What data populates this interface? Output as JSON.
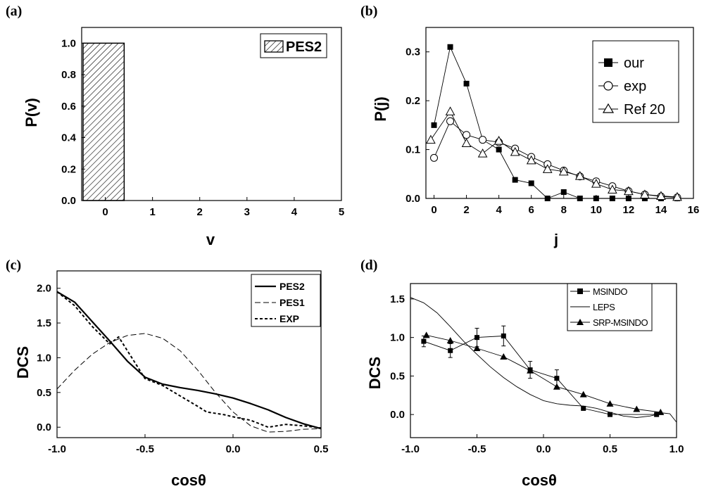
{
  "chart_data": [
    {
      "panel": "(a)",
      "type": "bar",
      "xlabel": "v",
      "ylabel": "P(v)",
      "xlim": [
        -0.5,
        5
      ],
      "ylim": [
        0,
        1.1
      ],
      "xticks": [
        "0",
        "1",
        "2",
        "3",
        "4",
        "5"
      ],
      "yticks": [
        "0.0",
        "0.2",
        "0.4",
        "0.6",
        "0.8",
        "1.0"
      ],
      "legend": [
        "PES2"
      ],
      "legend_position": "top-right",
      "categories": [
        0
      ],
      "values": [
        1.0
      ]
    },
    {
      "panel": "(b)",
      "type": "scatter",
      "xlabel": "j",
      "ylabel": "P(j)",
      "xlim": [
        -0.5,
        16
      ],
      "ylim": [
        0,
        0.35
      ],
      "xticks": [
        "0",
        "2",
        "4",
        "6",
        "8",
        "10",
        "12",
        "14",
        "16"
      ],
      "yticks": [
        "0.0",
        "0.1",
        "0.2",
        "0.3"
      ],
      "legend_position": "top-right",
      "series": [
        {
          "name": "our",
          "marker": "filled-square",
          "x": [
            0,
            1,
            2,
            3,
            4,
            5,
            6,
            7,
            8,
            9,
            10,
            11,
            12,
            13,
            14,
            15
          ],
          "y": [
            0.15,
            0.31,
            0.235,
            0.12,
            0.1,
            0.038,
            0.031,
            0.0,
            0.013,
            0.0,
            0.0,
            0.0,
            0.0,
            0.0,
            0.0,
            0.0
          ]
        },
        {
          "name": "exp",
          "marker": "open-circle",
          "x": [
            0,
            1,
            2,
            3,
            4,
            5,
            6,
            7,
            8,
            9,
            10,
            11,
            12,
            13,
            14,
            15
          ],
          "y": [
            0.083,
            0.158,
            0.13,
            0.12,
            0.115,
            0.102,
            0.085,
            0.07,
            0.057,
            0.045,
            0.035,
            0.025,
            0.015,
            0.008,
            0.004,
            0.002
          ]
        },
        {
          "name": "Ref 20",
          "marker": "open-triangle",
          "x": [
            -0.2,
            1,
            2,
            3,
            4,
            5,
            6,
            7,
            8,
            9,
            10,
            11,
            12,
            13,
            14,
            15
          ],
          "y": [
            0.12,
            0.178,
            0.113,
            0.092,
            0.118,
            0.095,
            0.078,
            0.06,
            0.055,
            0.046,
            0.03,
            0.018,
            0.015,
            0.008,
            0.005,
            0.003
          ]
        }
      ]
    },
    {
      "panel": "(c)",
      "type": "line",
      "xlabel": "cosθ",
      "ylabel": "DCS",
      "xlim": [
        -1.0,
        0.5
      ],
      "ylim": [
        -0.15,
        2.25
      ],
      "xticks": [
        "-1.0",
        "-0.5",
        "0.0",
        "0.5"
      ],
      "yticks": [
        "0.0",
        "0.5",
        "1.0",
        "1.5",
        "2.0"
      ],
      "legend_position": "top-right",
      "series": [
        {
          "name": "PES2",
          "style": "solid",
          "x": [
            -1.0,
            -0.9,
            -0.8,
            -0.7,
            -0.6,
            -0.5,
            -0.4,
            -0.3,
            -0.2,
            -0.1,
            0.0,
            0.1,
            0.2,
            0.3,
            0.4,
            0.5
          ],
          "y": [
            1.95,
            1.8,
            1.52,
            1.24,
            0.95,
            0.72,
            0.62,
            0.57,
            0.53,
            0.48,
            0.42,
            0.34,
            0.25,
            0.14,
            0.05,
            -0.02
          ]
        },
        {
          "name": "PES1",
          "style": "dashed",
          "x": [
            -1.0,
            -0.9,
            -0.8,
            -0.7,
            -0.6,
            -0.5,
            -0.4,
            -0.3,
            -0.2,
            -0.1,
            0.0,
            0.1,
            0.2,
            0.3,
            0.4,
            0.5
          ],
          "y": [
            0.55,
            0.82,
            1.05,
            1.22,
            1.32,
            1.35,
            1.28,
            1.1,
            0.82,
            0.5,
            0.22,
            0.02,
            -0.07,
            -0.06,
            -0.03,
            -0.02
          ]
        },
        {
          "name": "EXP",
          "style": "short-dash",
          "x": [
            -1.0,
            -0.9,
            -0.8,
            -0.7,
            -0.65,
            -0.6,
            -0.55,
            -0.5,
            -0.4,
            -0.3,
            -0.2,
            -0.15,
            -0.05,
            0.0,
            0.1,
            0.2,
            0.3,
            0.4,
            0.5
          ],
          "y": [
            1.95,
            1.75,
            1.45,
            1.2,
            1.3,
            1.1,
            0.9,
            0.7,
            0.6,
            0.45,
            0.3,
            0.22,
            0.18,
            0.15,
            0.1,
            0.0,
            0.04,
            0.02,
            -0.01
          ]
        }
      ]
    },
    {
      "panel": "(d)",
      "type": "line",
      "xlabel": "cosθ",
      "ylabel": "DCS",
      "xlim": [
        -1.0,
        1.0
      ],
      "ylim": [
        -0.3,
        1.7
      ],
      "xticks": [
        "-1.0",
        "-0.5",
        "0.0",
        "0.5",
        "1.0"
      ],
      "yticks": [
        "0.0",
        "0.5",
        "1.0",
        "1.5"
      ],
      "legend_position": "top-right",
      "series": [
        {
          "name": "MSINDO",
          "marker": "filled-square",
          "x": [
            -0.9,
            -0.7,
            -0.5,
            -0.3,
            -0.1,
            0.1,
            0.3,
            0.5,
            0.85
          ],
          "y": [
            0.95,
            0.83,
            1.0,
            1.02,
            0.58,
            0.47,
            0.08,
            0.0,
            0.0
          ],
          "err": [
            0.07,
            0.09,
            0.12,
            0.13,
            0.11,
            0.11,
            0.0,
            0.0,
            0.0
          ]
        },
        {
          "name": "LEPS",
          "style": "solid",
          "x": [
            -1.0,
            -0.9,
            -0.8,
            -0.7,
            -0.6,
            -0.5,
            -0.4,
            -0.3,
            -0.2,
            -0.1,
            0.0,
            0.1,
            0.2,
            0.3,
            0.4,
            0.5,
            0.6,
            0.7,
            0.8,
            0.9,
            0.95,
            1.0
          ],
          "y": [
            1.52,
            1.45,
            1.32,
            1.14,
            0.95,
            0.78,
            0.62,
            0.48,
            0.36,
            0.26,
            0.18,
            0.14,
            0.12,
            0.11,
            0.08,
            0.03,
            -0.02,
            -0.04,
            -0.02,
            0.02,
            0.01,
            -0.1
          ]
        },
        {
          "name": "SRP-MSINDO",
          "marker": "filled-triangle",
          "x": [
            -0.88,
            -0.7,
            -0.5,
            -0.3,
            -0.1,
            0.1,
            0.3,
            0.5,
            0.7,
            0.88
          ],
          "y": [
            1.03,
            0.96,
            0.86,
            0.75,
            0.57,
            0.36,
            0.26,
            0.14,
            0.07,
            0.03
          ]
        }
      ]
    }
  ]
}
